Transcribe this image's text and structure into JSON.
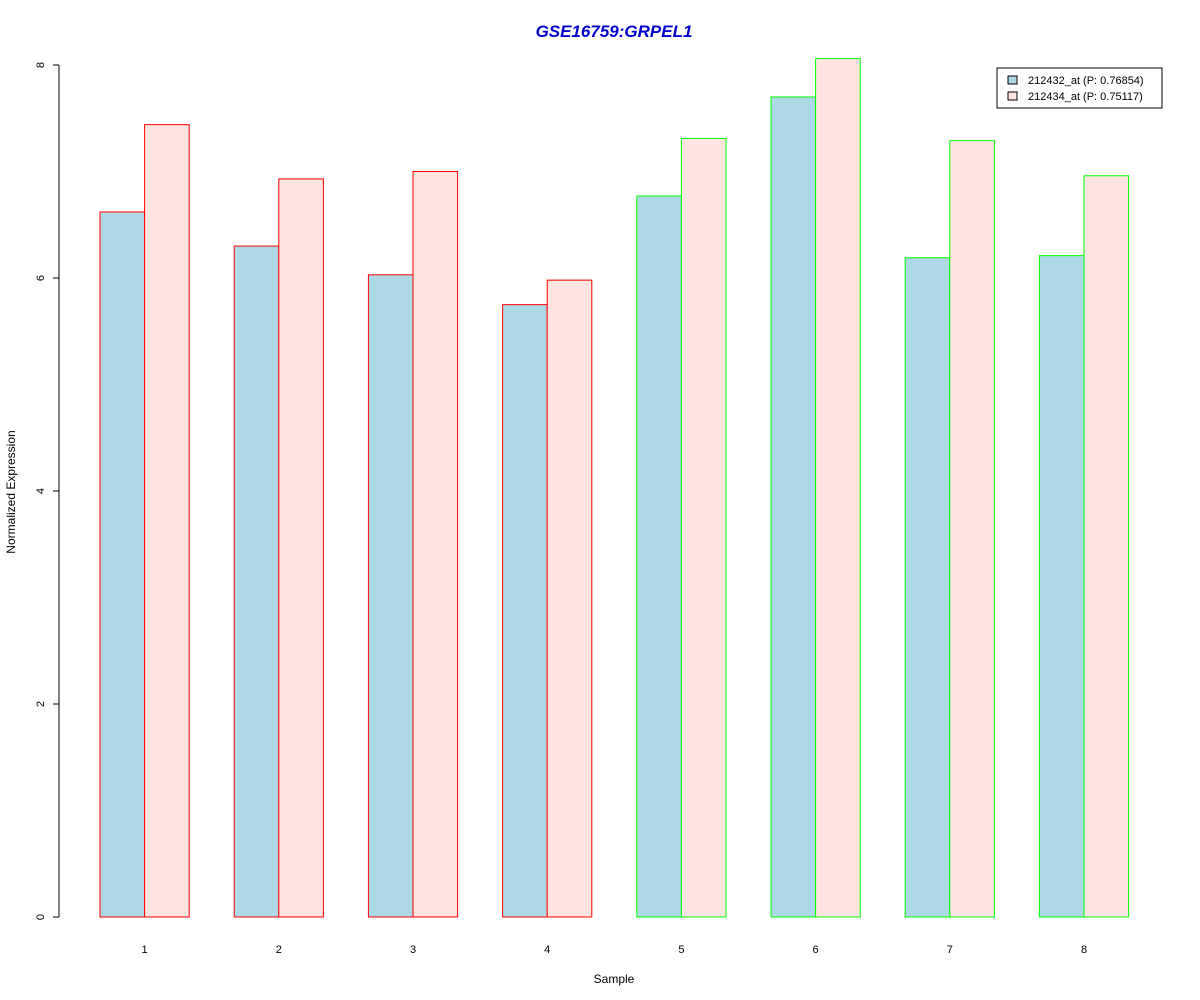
{
  "chart_data": {
    "type": "bar",
    "title": "GSE16759:GRPEL1",
    "xlabel": "Sample",
    "ylabel": "Normalized Expression",
    "categories": [
      "1",
      "2",
      "3",
      "4",
      "5",
      "6",
      "7",
      "8"
    ],
    "ylim": [
      0,
      8
    ],
    "yticks": [
      0,
      2,
      4,
      6,
      8
    ],
    "grid": false,
    "legend_position": "top-right",
    "series": [
      {
        "name": "212432_at (P: 0.76854)",
        "fill": "#ADD8E6",
        "values": [
          6.62,
          6.3,
          6.03,
          5.75,
          6.77,
          7.7,
          6.19,
          6.21
        ]
      },
      {
        "name": "212434_at (P: 0.75117)",
        "fill": "#FFE4E1",
        "values": [
          7.44,
          6.93,
          7.0,
          5.98,
          7.31,
          8.06,
          7.29,
          6.96
        ]
      }
    ],
    "group_border_colors": [
      "#FF0000",
      "#FF0000",
      "#FF0000",
      "#FF0000",
      "#00FF00",
      "#00FF00",
      "#00FF00",
      "#00FF00"
    ],
    "colors": {
      "title": "#0000CD",
      "axis": "#000000"
    }
  }
}
